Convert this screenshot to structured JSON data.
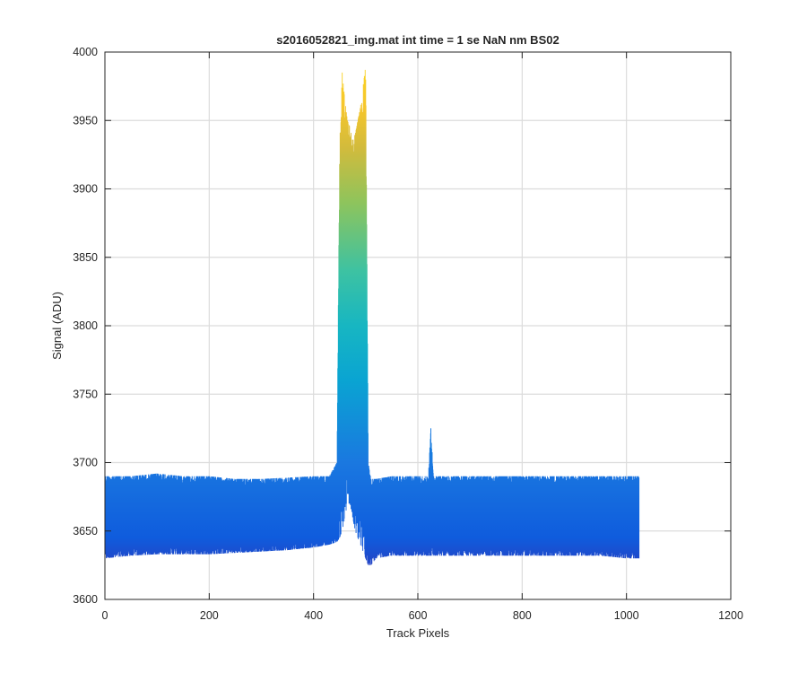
{
  "chart_data": {
    "type": "line",
    "title": "s2016052821_img.mat int time = 1 se  NaN nm BS02",
    "xlabel": "Track Pixels",
    "ylabel": "Signal (ADU)",
    "xlim": [
      0,
      1200
    ],
    "ylim": [
      3600,
      4000
    ],
    "xticks": [
      0,
      200,
      400,
      600,
      800,
      1000,
      1200
    ],
    "yticks": [
      3600,
      3650,
      3700,
      3750,
      3800,
      3850,
      3900,
      3950,
      4000
    ],
    "grid": true,
    "legend": "none",
    "colormap": [
      "#3e26a8",
      "#0f5cdd",
      "#1a78e0",
      "#0aa4d2",
      "#17b6c2",
      "#3dc2a2",
      "#8ec45c",
      "#d2bb3c",
      "#f6c62c",
      "#f9d81e"
    ],
    "series_summary": {
      "description": "Many overlaid noisy line traces (one per track), colored by signal value",
      "x_range": [
        0,
        1024
      ],
      "baseline_signal": 3660,
      "baseline_noise_range": [
        3625,
        3695
      ],
      "peak_x_range": [
        445,
        505
      ],
      "peak_max_signal": 3990,
      "peak_dip_signal": 3935,
      "spike_x": 625,
      "spike_signal": 3725
    },
    "series": [
      {
        "name": "",
        "x": [
          0,
          50,
          100,
          150,
          200,
          250,
          300,
          350,
          400,
          430,
          445,
          450,
          455,
          460,
          465,
          470,
          475,
          480,
          485,
          490,
          495,
          500,
          505,
          510,
          520,
          550,
          600,
          620,
          625,
          630,
          650,
          700,
          750,
          800,
          850,
          900,
          950,
          1000,
          1023
        ],
        "upper": [
          3690,
          3690,
          3692,
          3690,
          3690,
          3688,
          3688,
          3689,
          3690,
          3690,
          3700,
          3930,
          3985,
          3965,
          3950,
          3945,
          3935,
          3940,
          3950,
          3960,
          3975,
          3990,
          3700,
          3688,
          3688,
          3690,
          3690,
          3690,
          3725,
          3690,
          3690,
          3690,
          3690,
          3690,
          3690,
          3690,
          3690,
          3690,
          3690
        ],
        "lower": [
          3630,
          3632,
          3633,
          3633,
          3633,
          3634,
          3635,
          3636,
          3638,
          3640,
          3642,
          3645,
          3650,
          3660,
          3670,
          3670,
          3660,
          3650,
          3645,
          3640,
          3635,
          3630,
          3625,
          3625,
          3630,
          3632,
          3632,
          3632,
          3632,
          3632,
          3632,
          3632,
          3632,
          3632,
          3632,
          3632,
          3632,
          3630,
          3630
        ]
      }
    ]
  }
}
